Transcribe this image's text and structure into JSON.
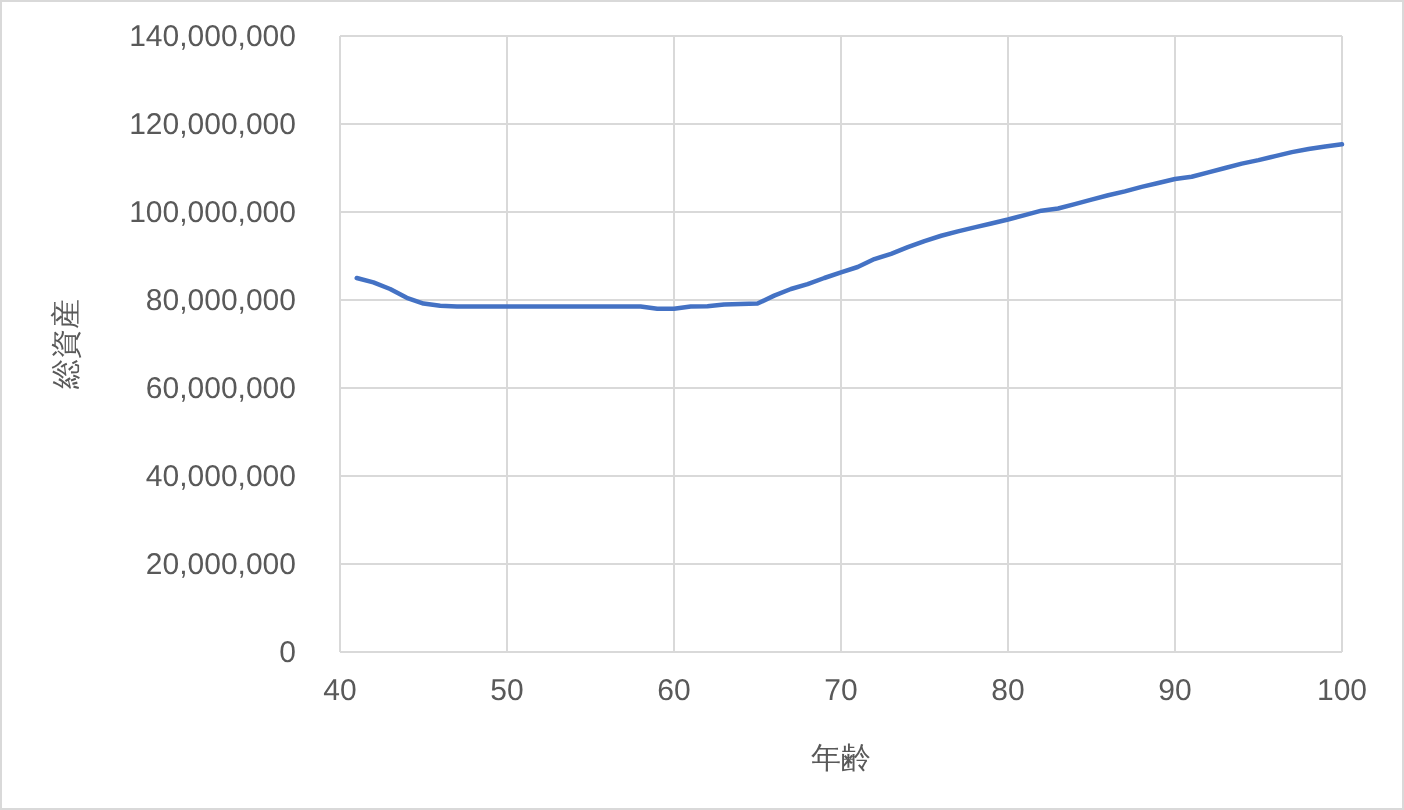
{
  "chart_data": {
    "type": "line",
    "xlabel": "年齢",
    "ylabel": "総資産",
    "x": [
      41,
      42,
      43,
      44,
      45,
      46,
      47,
      48,
      49,
      50,
      51,
      52,
      53,
      54,
      55,
      56,
      57,
      58,
      59,
      60,
      61,
      62,
      63,
      64,
      65,
      66,
      67,
      68,
      69,
      70,
      71,
      72,
      73,
      74,
      75,
      76,
      77,
      78,
      79,
      80,
      81,
      82,
      83,
      84,
      85,
      86,
      87,
      88,
      89,
      90,
      91,
      92,
      93,
      94,
      95,
      96,
      97,
      98,
      99,
      100
    ],
    "series": [
      {
        "color": "#4472c4",
        "values": [
          85000000,
          84000000,
          82500000,
          80500000,
          79200000,
          78700000,
          78500000,
          78500000,
          78500000,
          78500000,
          78500000,
          78500000,
          78500000,
          78500000,
          78500000,
          78500000,
          78500000,
          78500000,
          78000000,
          78000000,
          78500000,
          78600000,
          79000000,
          79100000,
          79200000,
          81000000,
          82500000,
          83600000,
          85000000,
          86300000,
          87500000,
          89300000,
          90500000,
          92000000,
          93400000,
          94600000,
          95600000,
          96500000,
          97400000,
          98300000,
          99300000,
          100300000,
          100800000,
          101800000,
          102800000,
          103800000,
          104700000,
          105700000,
          106600000,
          107500000,
          108000000,
          109000000,
          110000000,
          111000000,
          111800000,
          112700000,
          113600000,
          114300000,
          114900000,
          115400000
        ]
      }
    ],
    "xlim": [
      40,
      100
    ],
    "xticks": [
      40,
      50,
      60,
      70,
      80,
      90,
      100
    ],
    "ylim": [
      0,
      140000000
    ],
    "yticks": [
      {
        "value": 0,
        "label": "0"
      },
      {
        "value": 20000000,
        "label": "20,000,000"
      },
      {
        "value": 40000000,
        "label": "40,000,000"
      },
      {
        "value": 60000000,
        "label": "60,000,000"
      },
      {
        "value": 80000000,
        "label": "80,000,000"
      },
      {
        "value": 100000000,
        "label": "100,000,000"
      },
      {
        "value": 120000000,
        "label": "120,000,000"
      },
      {
        "value": 140000000,
        "label": "140,000,000"
      }
    ],
    "grid": true,
    "marker": "none",
    "line_style": "solid"
  }
}
